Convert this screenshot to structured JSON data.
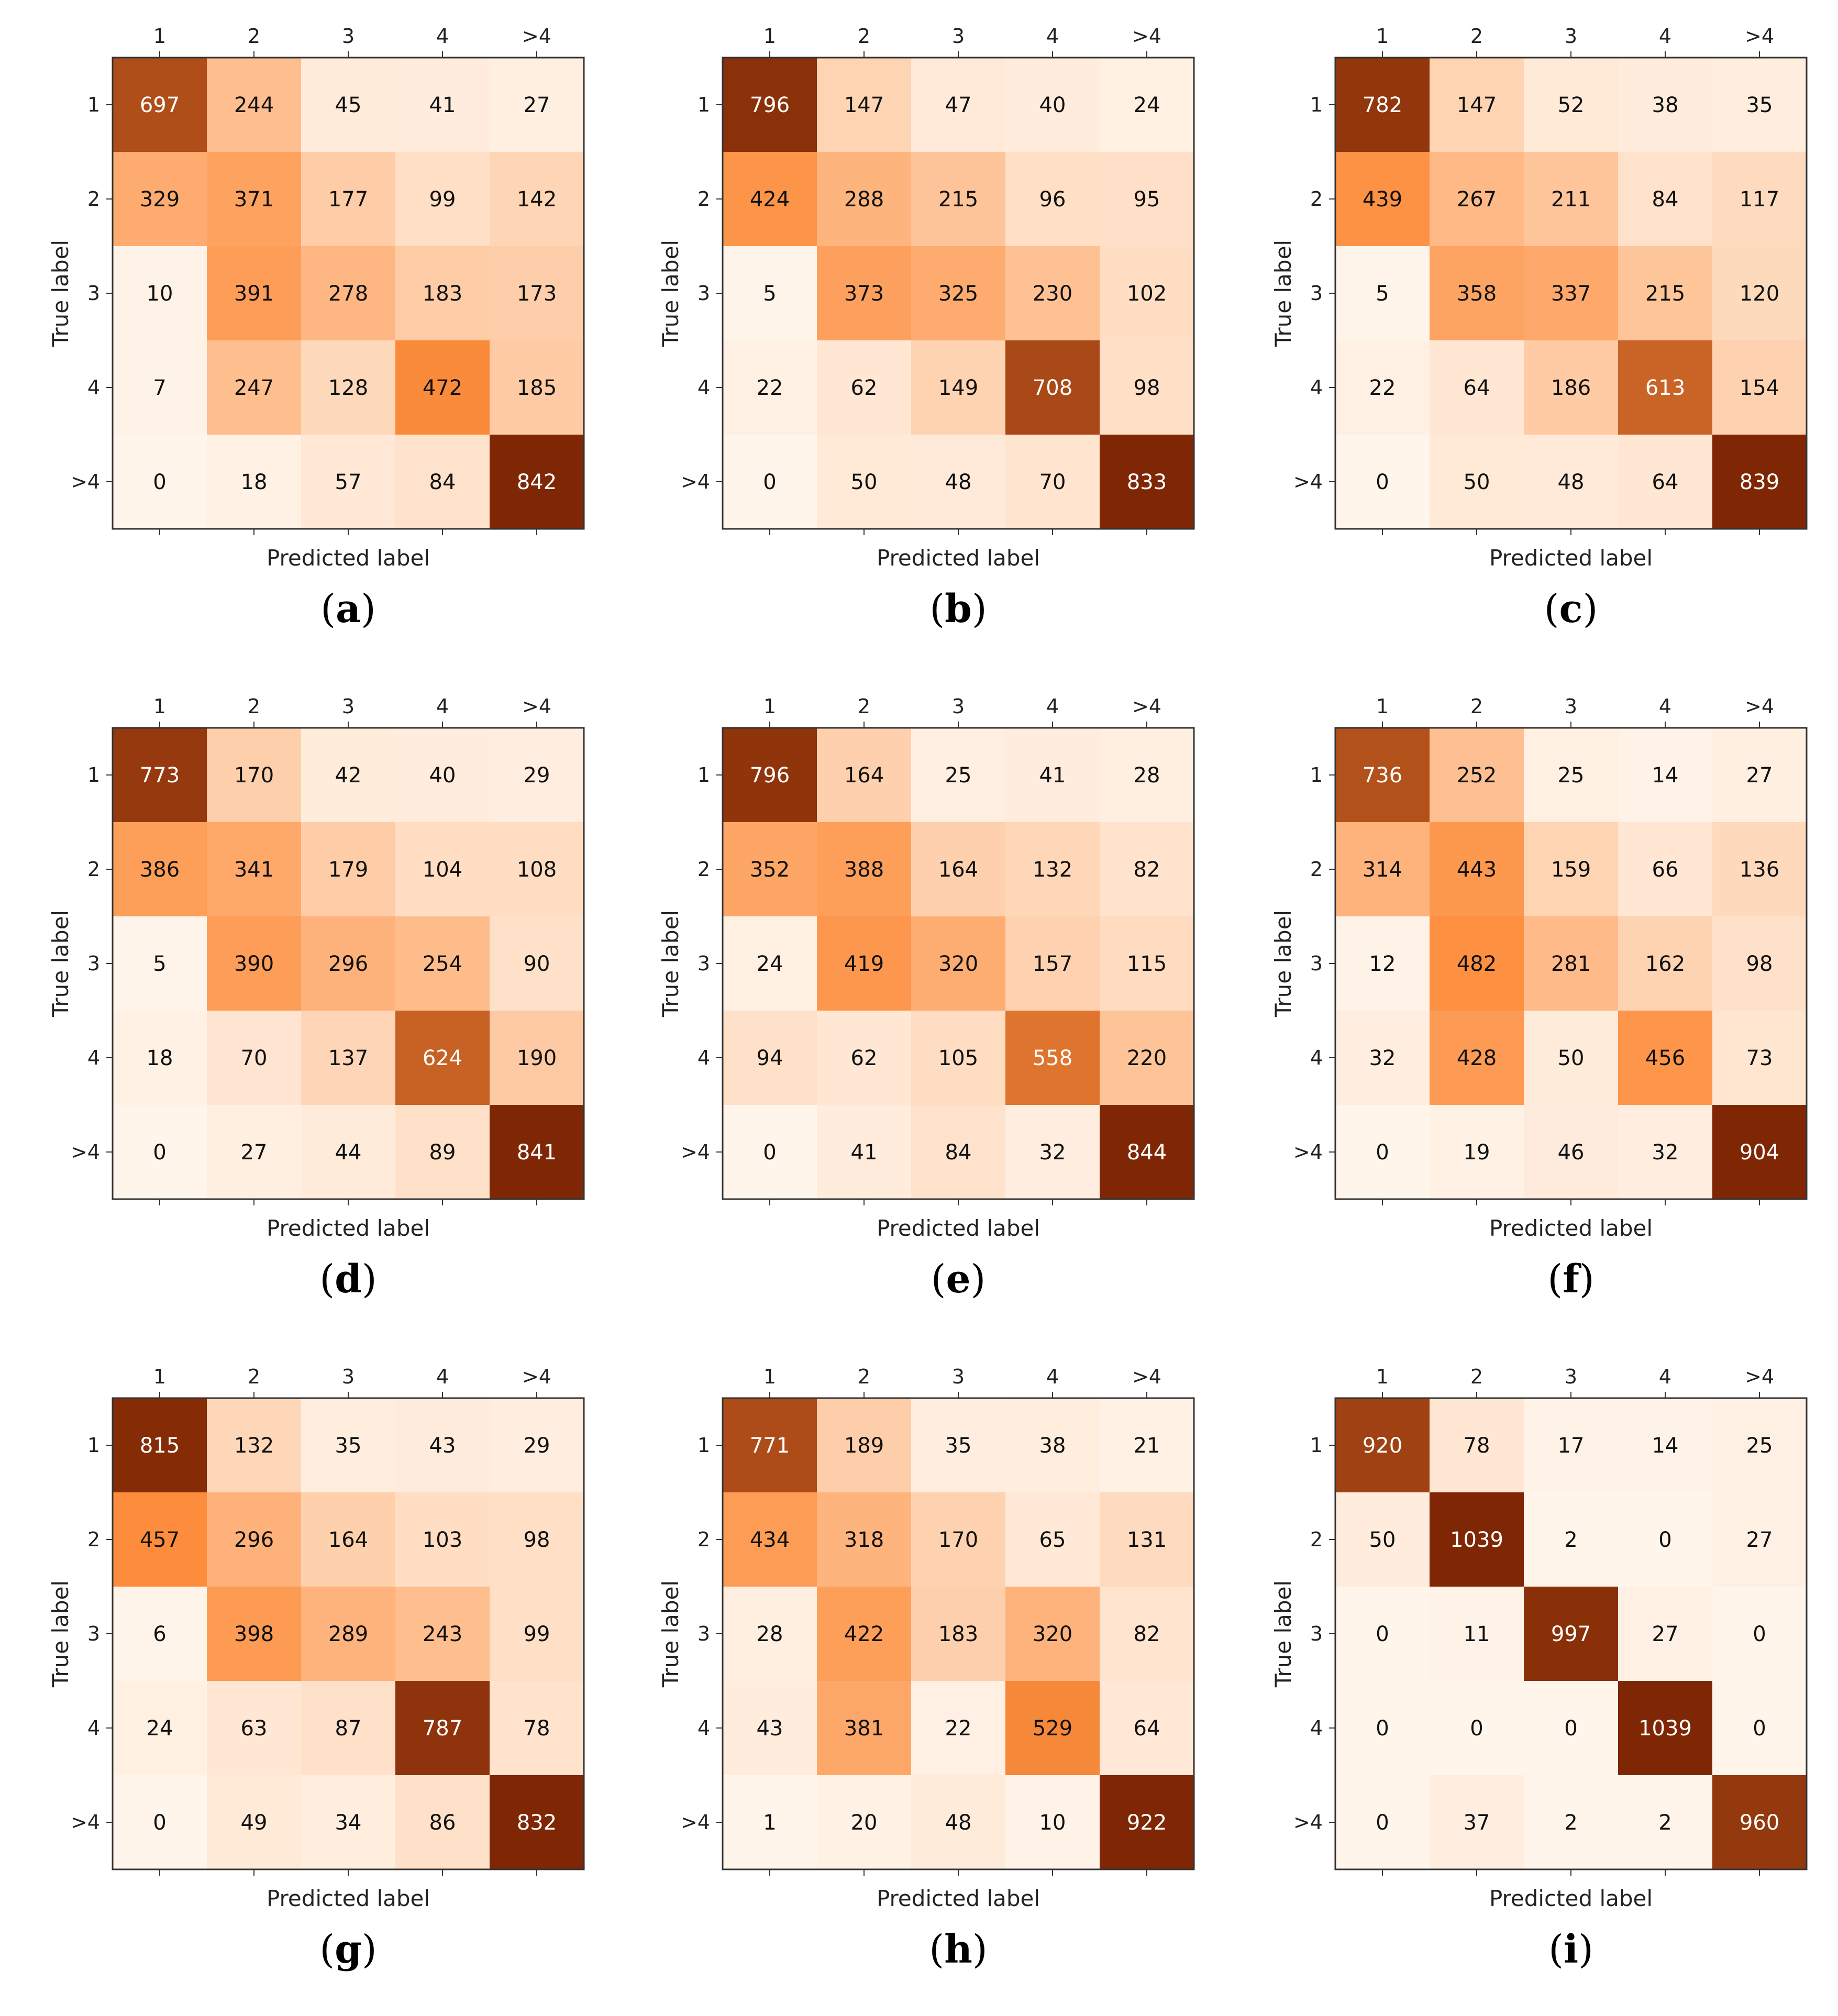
{
  "colors": {
    "low": "#fff5eb",
    "mid": "#fd8d3c",
    "high": "#7f2704",
    "grid_edge": "#333333"
  },
  "chart_data": [
    {
      "type": "heatmap",
      "caption_letter": "a",
      "xlabel": "Predicted label",
      "ylabel": "True label",
      "categories": [
        "1",
        "2",
        "3",
        "4",
        ">4"
      ],
      "values": [
        [
          697,
          244,
          45,
          41,
          27
        ],
        [
          329,
          371,
          177,
          99,
          142
        ],
        [
          10,
          391,
          278,
          183,
          173
        ],
        [
          7,
          247,
          128,
          472,
          185
        ],
        [
          0,
          18,
          57,
          84,
          842
        ]
      ]
    },
    {
      "type": "heatmap",
      "caption_letter": "b",
      "xlabel": "Predicted label",
      "ylabel": "True label",
      "categories": [
        "1",
        "2",
        "3",
        "4",
        ">4"
      ],
      "values": [
        [
          796,
          147,
          47,
          40,
          24
        ],
        [
          424,
          288,
          215,
          96,
          95
        ],
        [
          5,
          373,
          325,
          230,
          102
        ],
        [
          22,
          62,
          149,
          708,
          98
        ],
        [
          0,
          50,
          48,
          70,
          833
        ]
      ]
    },
    {
      "type": "heatmap",
      "caption_letter": "c",
      "xlabel": "Predicted label",
      "ylabel": "True label",
      "categories": [
        "1",
        "2",
        "3",
        "4",
        ">4"
      ],
      "values": [
        [
          782,
          147,
          52,
          38,
          35
        ],
        [
          439,
          267,
          211,
          84,
          117
        ],
        [
          5,
          358,
          337,
          215,
          120
        ],
        [
          22,
          64,
          186,
          613,
          154
        ],
        [
          0,
          50,
          48,
          64,
          839
        ]
      ]
    },
    {
      "type": "heatmap",
      "caption_letter": "d",
      "xlabel": "Predicted label",
      "ylabel": "True label",
      "categories": [
        "1",
        "2",
        "3",
        "4",
        ">4"
      ],
      "values": [
        [
          773,
          170,
          42,
          40,
          29
        ],
        [
          386,
          341,
          179,
          104,
          108
        ],
        [
          5,
          390,
          296,
          254,
          90
        ],
        [
          18,
          70,
          137,
          624,
          190
        ],
        [
          0,
          27,
          44,
          89,
          841
        ]
      ]
    },
    {
      "type": "heatmap",
      "caption_letter": "e",
      "xlabel": "Predicted label",
      "ylabel": "True label",
      "categories": [
        "1",
        "2",
        "3",
        "4",
        ">4"
      ],
      "values": [
        [
          796,
          164,
          25,
          41,
          28
        ],
        [
          352,
          388,
          164,
          132,
          82
        ],
        [
          24,
          419,
          320,
          157,
          115
        ],
        [
          94,
          62,
          105,
          558,
          220
        ],
        [
          0,
          41,
          84,
          32,
          844
        ]
      ]
    },
    {
      "type": "heatmap",
      "caption_letter": "f",
      "xlabel": "Predicted label",
      "ylabel": "True label",
      "categories": [
        "1",
        "2",
        "3",
        "4",
        ">4"
      ],
      "values": [
        [
          736,
          252,
          25,
          14,
          27
        ],
        [
          314,
          443,
          159,
          66,
          136
        ],
        [
          12,
          482,
          281,
          162,
          98
        ],
        [
          32,
          428,
          50,
          456,
          73
        ],
        [
          0,
          19,
          46,
          32,
          904
        ]
      ]
    },
    {
      "type": "heatmap",
      "caption_letter": "g",
      "xlabel": "Predicted label",
      "ylabel": "True label",
      "categories": [
        "1",
        "2",
        "3",
        "4",
        ">4"
      ],
      "values": [
        [
          815,
          132,
          35,
          43,
          29
        ],
        [
          457,
          296,
          164,
          103,
          98
        ],
        [
          6,
          398,
          289,
          243,
          99
        ],
        [
          24,
          63,
          87,
          787,
          78
        ],
        [
          0,
          49,
          34,
          86,
          832
        ]
      ]
    },
    {
      "type": "heatmap",
      "caption_letter": "h",
      "xlabel": "Predicted label",
      "ylabel": "True label",
      "categories": [
        "1",
        "2",
        "3",
        "4",
        ">4"
      ],
      "values": [
        [
          771,
          189,
          35,
          38,
          21
        ],
        [
          434,
          318,
          170,
          65,
          131
        ],
        [
          28,
          422,
          183,
          320,
          82
        ],
        [
          43,
          381,
          22,
          529,
          64
        ],
        [
          1,
          20,
          48,
          10,
          922
        ]
      ]
    },
    {
      "type": "heatmap",
      "caption_letter": "i",
      "xlabel": "Predicted label",
      "ylabel": "True label",
      "categories": [
        "1",
        "2",
        "3",
        "4",
        ">4"
      ],
      "values": [
        [
          920,
          78,
          17,
          14,
          25
        ],
        [
          50,
          1039,
          2,
          0,
          27
        ],
        [
          0,
          11,
          997,
          27,
          0
        ],
        [
          0,
          0,
          0,
          1039,
          0
        ],
        [
          0,
          37,
          2,
          2,
          960
        ]
      ]
    }
  ]
}
